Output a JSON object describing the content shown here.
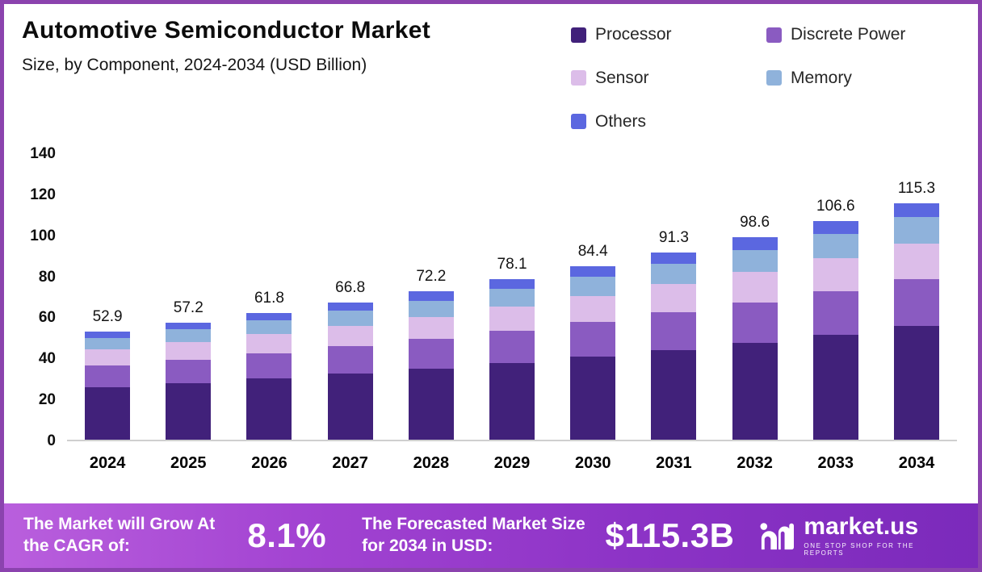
{
  "header": {
    "title": "Automotive Semiconductor Market",
    "subtitle": "Size, by Component, 2024-2034 (USD Billion)"
  },
  "legend": [
    {
      "label": "Processor",
      "color": "#41217a"
    },
    {
      "label": "Discrete Power",
      "color": "#8a5bc1"
    },
    {
      "label": "Sensor",
      "color": "#dcbde9"
    },
    {
      "label": "Memory",
      "color": "#8fb2db"
    },
    {
      "label": "Others",
      "color": "#5b67e0"
    }
  ],
  "chart_data": {
    "type": "bar",
    "stacked": true,
    "title": "Automotive Semiconductor Market Size, by Component, 2024-2034 (USD Billion)",
    "xlabel": "",
    "ylabel": "",
    "ylim": [
      0,
      140
    ],
    "yticks": [
      0,
      20,
      40,
      60,
      80,
      100,
      120,
      140
    ],
    "grid": false,
    "legend_position": "top-right",
    "categories": [
      "2024",
      "2025",
      "2026",
      "2027",
      "2028",
      "2029",
      "2030",
      "2031",
      "2032",
      "2033",
      "2034"
    ],
    "totals": [
      "52.9",
      "57.2",
      "61.8",
      "66.8",
      "72.2",
      "78.1",
      "84.4",
      "91.3",
      "98.6",
      "106.6",
      "115.3"
    ],
    "series": [
      {
        "name": "Processor",
        "color": "#41217a",
        "values": [
          25.4,
          27.5,
          29.7,
          32.1,
          34.7,
          37.5,
          40.5,
          43.8,
          47.3,
          51.2,
          55.3
        ]
      },
      {
        "name": "Discrete Power",
        "color": "#8a5bc1",
        "values": [
          10.6,
          11.4,
          12.4,
          13.4,
          14.4,
          15.6,
          16.9,
          18.3,
          19.7,
          21.3,
          23.1
        ]
      },
      {
        "name": "Sensor",
        "color": "#dcbde9",
        "values": [
          7.9,
          8.6,
          9.3,
          10.0,
          10.8,
          11.7,
          12.7,
          13.7,
          14.8,
          16.0,
          17.3
        ]
      },
      {
        "name": "Memory",
        "color": "#8fb2db",
        "values": [
          5.8,
          6.3,
          6.8,
          7.3,
          7.9,
          8.6,
          9.2,
          10.0,
          10.8,
          11.7,
          12.7
        ]
      },
      {
        "name": "Others",
        "color": "#5b67e0",
        "values": [
          3.2,
          3.4,
          3.6,
          4.0,
          4.4,
          4.7,
          5.1,
          5.5,
          6.0,
          6.4,
          6.9
        ]
      }
    ]
  },
  "footer": {
    "cagr_label": "The Market will Grow At the CAGR of:",
    "cagr_value": "8.1%",
    "forecast_label": "The Forecasted Market Size for 2034 in USD:",
    "forecast_value": "$115.3B",
    "brand": "market.us",
    "brand_tagline": "ONE STOP SHOP FOR THE REPORTS"
  },
  "colors": {
    "frame_border": "#8b43ae",
    "footer_gradient_start": "#b95fdd",
    "footer_gradient_end": "#7b2abb",
    "axis_line": "#cfcfcf"
  }
}
